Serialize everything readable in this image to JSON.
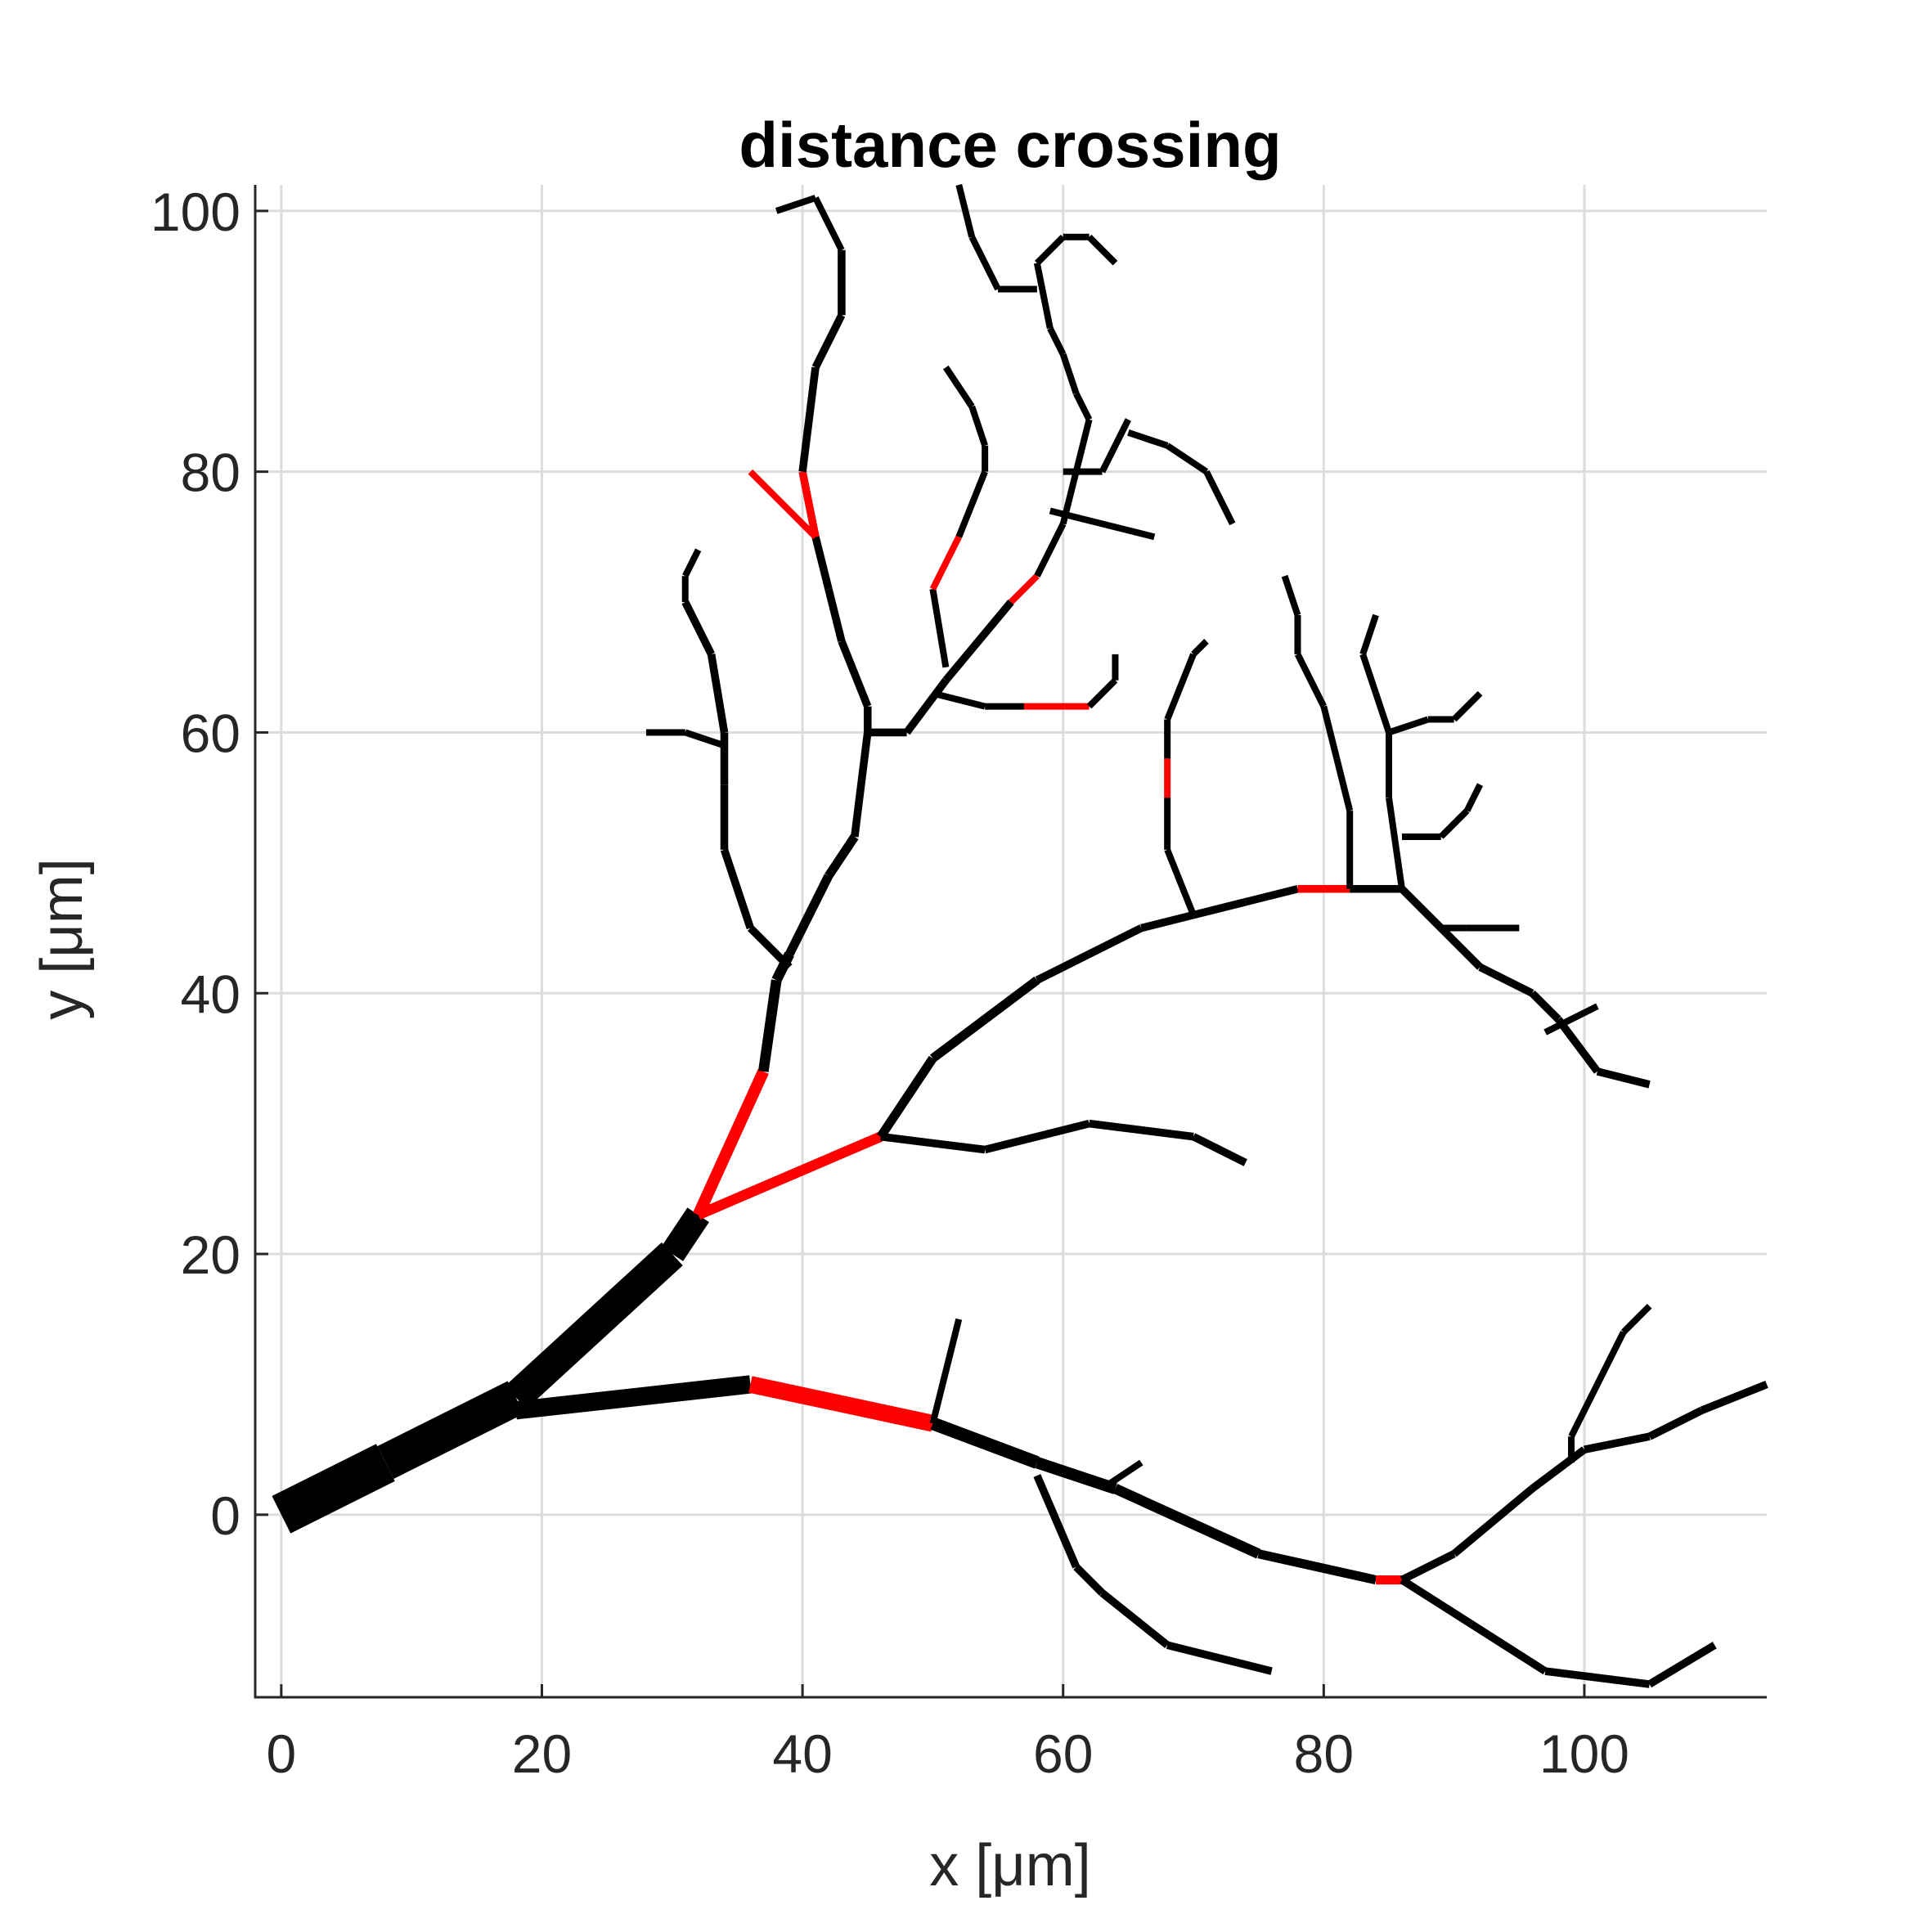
{
  "chart_data": {
    "type": "line",
    "title": "distance crossing",
    "xlabel": "x [μm]",
    "ylabel": "y [μm]",
    "xlim": [
      -2,
      114
    ],
    "ylim": [
      -14,
      102
    ],
    "xticks": [
      0,
      20,
      40,
      60,
      80,
      100
    ],
    "yticks": [
      0,
      20,
      40,
      60,
      80,
      100
    ],
    "xtick_labels": [
      "0",
      "20",
      "40",
      "60",
      "80",
      "100"
    ],
    "ytick_labels": [
      "0",
      "20",
      "40",
      "60",
      "80",
      "100"
    ],
    "grid": true,
    "colors": {
      "branch": "#000000",
      "crossing": "#ff0000"
    },
    "segments": [
      {
        "pts": [
          [
            0,
            0
          ],
          [
            8,
            4
          ],
          [
            18,
            9
          ],
          [
            30,
            20
          ],
          [
            32,
            23
          ]
        ],
        "w": [
          3.2,
          2.8,
          2.4,
          2.0
        ],
        "c": "branch"
      },
      {
        "pts": [
          [
            18,
            8
          ],
          [
            36,
            10
          ]
        ],
        "w": [
          1.4
        ],
        "c": "branch"
      },
      {
        "pts": [
          [
            36,
            10
          ],
          [
            50,
            7
          ]
        ],
        "w": [
          1.3
        ],
        "c": "crossing"
      },
      {
        "pts": [
          [
            50,
            7
          ],
          [
            58,
            4
          ],
          [
            64,
            2
          ],
          [
            75,
            -3
          ],
          [
            84,
            -5
          ]
        ],
        "w": [
          1.0,
          0.9,
          0.8,
          0.7
        ],
        "c": "branch"
      },
      {
        "pts": [
          [
            84,
            -5
          ],
          [
            86,
            -5
          ]
        ],
        "w": [
          0.7
        ],
        "c": "crossing"
      },
      {
        "pts": [
          [
            86,
            -5
          ],
          [
            90,
            -3
          ],
          [
            96,
            2
          ],
          [
            100,
            5
          ],
          [
            105,
            6
          ],
          [
            109,
            8
          ],
          [
            114,
            10
          ]
        ],
        "w": [
          0.6,
          0.6,
          0.6,
          0.6,
          0.6,
          0.6
        ],
        "c": "branch"
      },
      {
        "pts": [
          [
            86,
            -5
          ],
          [
            97,
            -12
          ],
          [
            105,
            -13
          ],
          [
            110,
            -10
          ]
        ],
        "w": [
          0.6,
          0.6,
          0.6
        ],
        "c": "branch"
      },
      {
        "pts": [
          [
            99,
            4
          ],
          [
            99,
            6
          ],
          [
            101,
            10
          ],
          [
            103,
            14
          ],
          [
            105,
            16
          ]
        ],
        "w": [
          0.5,
          0.5,
          0.5,
          0.5
        ],
        "c": "branch"
      },
      {
        "pts": [
          [
            50,
            7
          ],
          [
            52,
            15
          ]
        ],
        "w": [
          0.5
        ],
        "c": "branch"
      },
      {
        "pts": [
          [
            58,
            3
          ],
          [
            61,
            -4
          ],
          [
            63,
            -6
          ],
          [
            68,
            -10
          ],
          [
            76,
            -12
          ]
        ],
        "w": [
          0.6,
          0.6,
          0.6,
          0.6
        ],
        "c": "branch"
      },
      {
        "pts": [
          [
            63,
            2
          ],
          [
            66,
            4
          ]
        ],
        "w": [
          0.5
        ],
        "c": "branch"
      },
      {
        "pts": [
          [
            32,
            23
          ],
          [
            37,
            34
          ]
        ],
        "w": [
          0.9
        ],
        "c": "crossing"
      },
      {
        "pts": [
          [
            37,
            34
          ],
          [
            38,
            41
          ],
          [
            39,
            43
          ],
          [
            42,
            49
          ],
          [
            44,
            52
          ],
          [
            45,
            60
          ],
          [
            45,
            62
          ],
          [
            43,
            67
          ],
          [
            42,
            71
          ],
          [
            41,
            75
          ]
        ],
        "w": [
          0.8,
          0.8,
          0.7,
          0.7,
          0.6,
          0.6,
          0.6,
          0.6,
          0.6
        ],
        "c": "branch"
      },
      {
        "pts": [
          [
            41,
            75
          ],
          [
            40,
            80
          ]
        ],
        "w": [
          0.6
        ],
        "c": "crossing"
      },
      {
        "pts": [
          [
            40,
            80
          ],
          [
            41,
            88
          ],
          [
            43,
            92
          ],
          [
            43,
            97
          ],
          [
            41,
            101
          ],
          [
            38,
            100
          ]
        ],
        "w": [
          0.6,
          0.6,
          0.6,
          0.5,
          0.5
        ],
        "c": "branch"
      },
      {
        "pts": [
          [
            41,
            75
          ],
          [
            36,
            80
          ]
        ],
        "w": [
          0.5
        ],
        "c": "crossing"
      },
      {
        "pts": [
          [
            39,
            42
          ],
          [
            36,
            45
          ],
          [
            34,
            51
          ],
          [
            34,
            56
          ],
          [
            34,
            60
          ],
          [
            33,
            66
          ],
          [
            31,
            70
          ],
          [
            31,
            72
          ],
          [
            32,
            74
          ]
        ],
        "w": [
          0.6,
          0.6,
          0.6,
          0.6,
          0.6,
          0.6,
          0.5,
          0.5
        ],
        "c": "branch"
      },
      {
        "pts": [
          [
            34,
            59
          ],
          [
            31,
            60
          ],
          [
            28,
            60
          ]
        ],
        "w": [
          0.5,
          0.5
        ],
        "c": "branch"
      },
      {
        "pts": [
          [
            45,
            60
          ],
          [
            48,
            60
          ],
          [
            51,
            64
          ],
          [
            56,
            70
          ]
        ],
        "w": [
          0.6,
          0.6,
          0.6
        ],
        "c": "branch"
      },
      {
        "pts": [
          [
            56,
            70
          ],
          [
            58,
            72
          ]
        ],
        "w": [
          0.5
        ],
        "c": "crossing"
      },
      {
        "pts": [
          [
            58,
            72
          ],
          [
            60,
            76
          ],
          [
            61,
            80
          ],
          [
            62,
            84
          ],
          [
            61,
            86
          ],
          [
            60,
            89
          ],
          [
            59,
            91
          ],
          [
            58,
            96
          ],
          [
            60,
            98
          ],
          [
            62,
            98
          ],
          [
            64,
            96
          ]
        ],
        "w": [
          0.5,
          0.5,
          0.5,
          0.5,
          0.5,
          0.5,
          0.5,
          0.5,
          0.5,
          0.5
        ],
        "c": "branch"
      },
      {
        "pts": [
          [
            59,
            77
          ],
          [
            67,
            75
          ]
        ],
        "w": [
          0.5
        ],
        "c": "branch"
      },
      {
        "pts": [
          [
            60,
            80
          ],
          [
            63,
            80
          ],
          [
            65,
            84
          ]
        ],
        "w": [
          0.5,
          0.5
        ],
        "c": "branch"
      },
      {
        "pts": [
          [
            65,
            83
          ],
          [
            68,
            82
          ],
          [
            71,
            80
          ],
          [
            73,
            76
          ]
        ],
        "w": [
          0.5,
          0.5,
          0.5
        ],
        "c": "branch"
      },
      {
        "pts": [
          [
            58,
            94
          ],
          [
            55,
            94
          ],
          [
            53,
            98
          ],
          [
            52,
            102
          ]
        ],
        "w": [
          0.5,
          0.5,
          0.5
        ],
        "c": "branch"
      },
      {
        "pts": [
          [
            51,
            65
          ],
          [
            50,
            71
          ]
        ],
        "w": [
          0.5
        ],
        "c": "branch"
      },
      {
        "pts": [
          [
            50,
            71
          ],
          [
            52,
            75
          ]
        ],
        "w": [
          0.5
        ],
        "c": "crossing"
      },
      {
        "pts": [
          [
            52,
            75
          ],
          [
            54,
            80
          ],
          [
            54,
            82
          ],
          [
            53,
            85
          ],
          [
            51,
            88
          ]
        ],
        "w": [
          0.5,
          0.5,
          0.5,
          0.5
        ],
        "c": "branch"
      },
      {
        "pts": [
          [
            50,
            63
          ],
          [
            54,
            62
          ],
          [
            57,
            62
          ]
        ],
        "w": [
          0.5,
          0.5
        ],
        "c": "branch"
      },
      {
        "pts": [
          [
            57,
            62
          ],
          [
            62,
            62
          ]
        ],
        "w": [
          0.5
        ],
        "c": "crossing"
      },
      {
        "pts": [
          [
            62,
            62
          ],
          [
            64,
            64
          ],
          [
            64,
            66
          ]
        ],
        "w": [
          0.5,
          0.5
        ],
        "c": "branch"
      },
      {
        "pts": [
          [
            32,
            23
          ],
          [
            46,
            29
          ]
        ],
        "w": [
          0.8
        ],
        "c": "crossing"
      },
      {
        "pts": [
          [
            46,
            29
          ],
          [
            50,
            35
          ],
          [
            54,
            38
          ],
          [
            58,
            41
          ],
          [
            62,
            43
          ],
          [
            66,
            45
          ],
          [
            70,
            46
          ],
          [
            74,
            47
          ],
          [
            78,
            48
          ]
        ],
        "w": [
          0.7,
          0.7,
          0.7,
          0.6,
          0.6,
          0.6,
          0.6,
          0.6
        ],
        "c": "branch"
      },
      {
        "pts": [
          [
            78,
            48
          ],
          [
            82,
            48
          ]
        ],
        "w": [
          0.6
        ],
        "c": "crossing"
      },
      {
        "pts": [
          [
            82,
            48
          ],
          [
            86,
            48
          ],
          [
            89,
            45
          ],
          [
            92,
            42
          ],
          [
            96,
            40
          ],
          [
            98,
            38
          ],
          [
            101,
            34
          ],
          [
            105,
            33
          ]
        ],
        "w": [
          0.6,
          0.6,
          0.6,
          0.6,
          0.6,
          0.6,
          0.6
        ],
        "c": "branch"
      },
      {
        "pts": [
          [
            46,
            29
          ],
          [
            54,
            28
          ],
          [
            62,
            30
          ],
          [
            70,
            29
          ],
          [
            74,
            27
          ]
        ],
        "w": [
          0.6,
          0.6,
          0.6,
          0.6
        ],
        "c": "branch"
      },
      {
        "pts": [
          [
            70,
            46
          ],
          [
            68,
            51
          ],
          [
            68,
            55
          ]
        ],
        "w": [
          0.5,
          0.5
        ],
        "c": "branch"
      },
      {
        "pts": [
          [
            68,
            55
          ],
          [
            68,
            58
          ]
        ],
        "w": [
          0.5
        ],
        "c": "crossing"
      },
      {
        "pts": [
          [
            68,
            58
          ],
          [
            68,
            61
          ],
          [
            70,
            66
          ],
          [
            71,
            67
          ]
        ],
        "w": [
          0.5,
          0.5,
          0.5
        ],
        "c": "branch"
      },
      {
        "pts": [
          [
            82,
            48
          ],
          [
            82,
            54
          ],
          [
            81,
            58
          ],
          [
            80,
            62
          ],
          [
            78,
            66
          ],
          [
            78,
            69
          ],
          [
            77,
            72
          ]
        ],
        "w": [
          0.5,
          0.5,
          0.5,
          0.5,
          0.5,
          0.5
        ],
        "c": "branch"
      },
      {
        "pts": [
          [
            86,
            48
          ],
          [
            85,
            55
          ],
          [
            85,
            60
          ],
          [
            84,
            63
          ],
          [
            83,
            66
          ],
          [
            84,
            69
          ]
        ],
        "w": [
          0.5,
          0.5,
          0.5,
          0.5,
          0.5
        ],
        "c": "branch"
      },
      {
        "pts": [
          [
            85,
            60
          ],
          [
            88,
            61
          ],
          [
            90,
            61
          ],
          [
            92,
            63
          ]
        ],
        "w": [
          0.5,
          0.5,
          0.5
        ],
        "c": "branch"
      },
      {
        "pts": [
          [
            86,
            52
          ],
          [
            89,
            52
          ],
          [
            91,
            54
          ],
          [
            92,
            56
          ]
        ],
        "w": [
          0.5,
          0.5,
          0.5
        ],
        "c": "branch"
      },
      {
        "pts": [
          [
            89,
            45
          ],
          [
            91,
            45
          ],
          [
            95,
            45
          ]
        ],
        "w": [
          0.5,
          0.5
        ],
        "c": "branch"
      },
      {
        "pts": [
          [
            97,
            37
          ],
          [
            101,
            39
          ]
        ],
        "w": [
          0.5
        ],
        "c": "branch"
      }
    ]
  }
}
